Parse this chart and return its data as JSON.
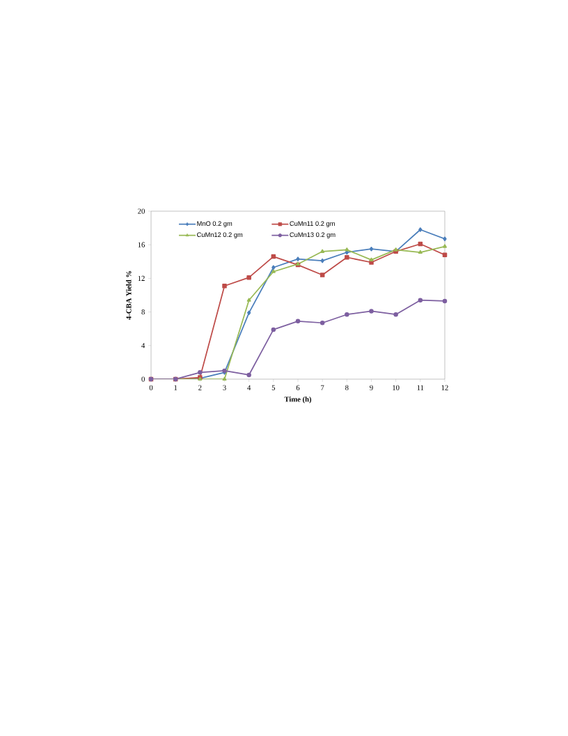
{
  "chart_data": {
    "type": "line",
    "xlabel": "Time (h)",
    "ylabel": "4-CBA Yield  %",
    "x": [
      0,
      1,
      2,
      3,
      4,
      5,
      6,
      7,
      8,
      9,
      10,
      11,
      12
    ],
    "xlim": [
      0,
      12
    ],
    "xticks": [
      0,
      1,
      2,
      3,
      4,
      5,
      6,
      7,
      8,
      9,
      10,
      11,
      12
    ],
    "ylim": [
      0,
      20
    ],
    "yticks": [
      0,
      4,
      8,
      12,
      16,
      20
    ],
    "legend": "top left",
    "grid": false,
    "line_style": "solid",
    "series": [
      {
        "name": "MnO  0.2 gm",
        "color": "#4a7ebb",
        "marker": "diamond",
        "values": [
          0,
          0,
          0.1,
          0.8,
          7.9,
          13.3,
          14.3,
          14.1,
          15.1,
          15.5,
          15.2,
          17.8,
          16.7
        ]
      },
      {
        "name": "CuMn11  0.2 gm",
        "color": "#be4b48",
        "marker": "square",
        "values": [
          0,
          0,
          0.2,
          11.1,
          12.1,
          14.6,
          13.6,
          12.4,
          14.5,
          13.9,
          15.2,
          16.1,
          14.8
        ]
      },
      {
        "name": "CuMn12  0.2 gm",
        "color": "#98b954",
        "marker": "triangle",
        "values": [
          0,
          0,
          0,
          0,
          9.4,
          12.8,
          13.7,
          15.2,
          15.4,
          14.2,
          15.4,
          15.1,
          15.8
        ]
      },
      {
        "name": "CuMn13  0.2 gm",
        "color": "#7d5fa0",
        "marker": "circle",
        "values": [
          0,
          0,
          0.8,
          1.0,
          0.5,
          5.9,
          6.9,
          6.7,
          7.7,
          8.1,
          7.7,
          9.4,
          9.3
        ]
      }
    ]
  }
}
